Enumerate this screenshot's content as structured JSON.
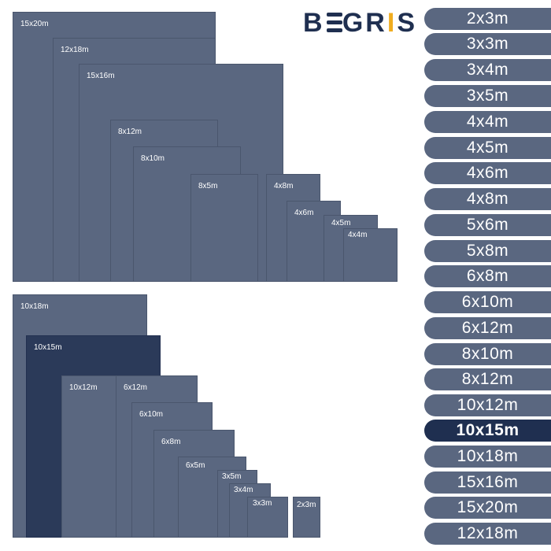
{
  "brand": {
    "logo_prefix": "B",
    "logo_suffix": "GR",
    "logo_accent": "I",
    "logo_end": "S",
    "color": "#1f2f50",
    "accent_color": "#f0ad1f"
  },
  "colors": {
    "tarp": "#5a6780",
    "highlight": "#2b3a59",
    "pill": "#5a6780",
    "pill_active": "#1f2f50"
  },
  "top_group": {
    "labels": [
      "15x20m",
      "12x18m",
      "15x16m",
      "8x12m",
      "8x10m",
      "8x5m",
      "4x8m",
      "4x6m",
      "4x5m",
      "4x4m"
    ]
  },
  "bottom_group": {
    "labels": [
      "10x18m",
      "10x15m",
      "10x12m",
      "6x12m",
      "6x10m",
      "6x8m",
      "6x5m",
      "3x5m",
      "3x4m",
      "3x3m",
      "2x3m"
    ],
    "highlighted": "10x15m"
  },
  "size_list": {
    "items": [
      "2x3m",
      "3x3m",
      "3x4m",
      "3x5m",
      "4x4m",
      "4x5m",
      "4x6m",
      "4x8m",
      "5x6m",
      "5x8m",
      "6x8m",
      "6x10m",
      "6x12m",
      "8x10m",
      "8x12m",
      "10x12m",
      "10x15m",
      "10x18m",
      "15x16m",
      "15x20m",
      "12x18m"
    ],
    "selected": "10x15m"
  }
}
